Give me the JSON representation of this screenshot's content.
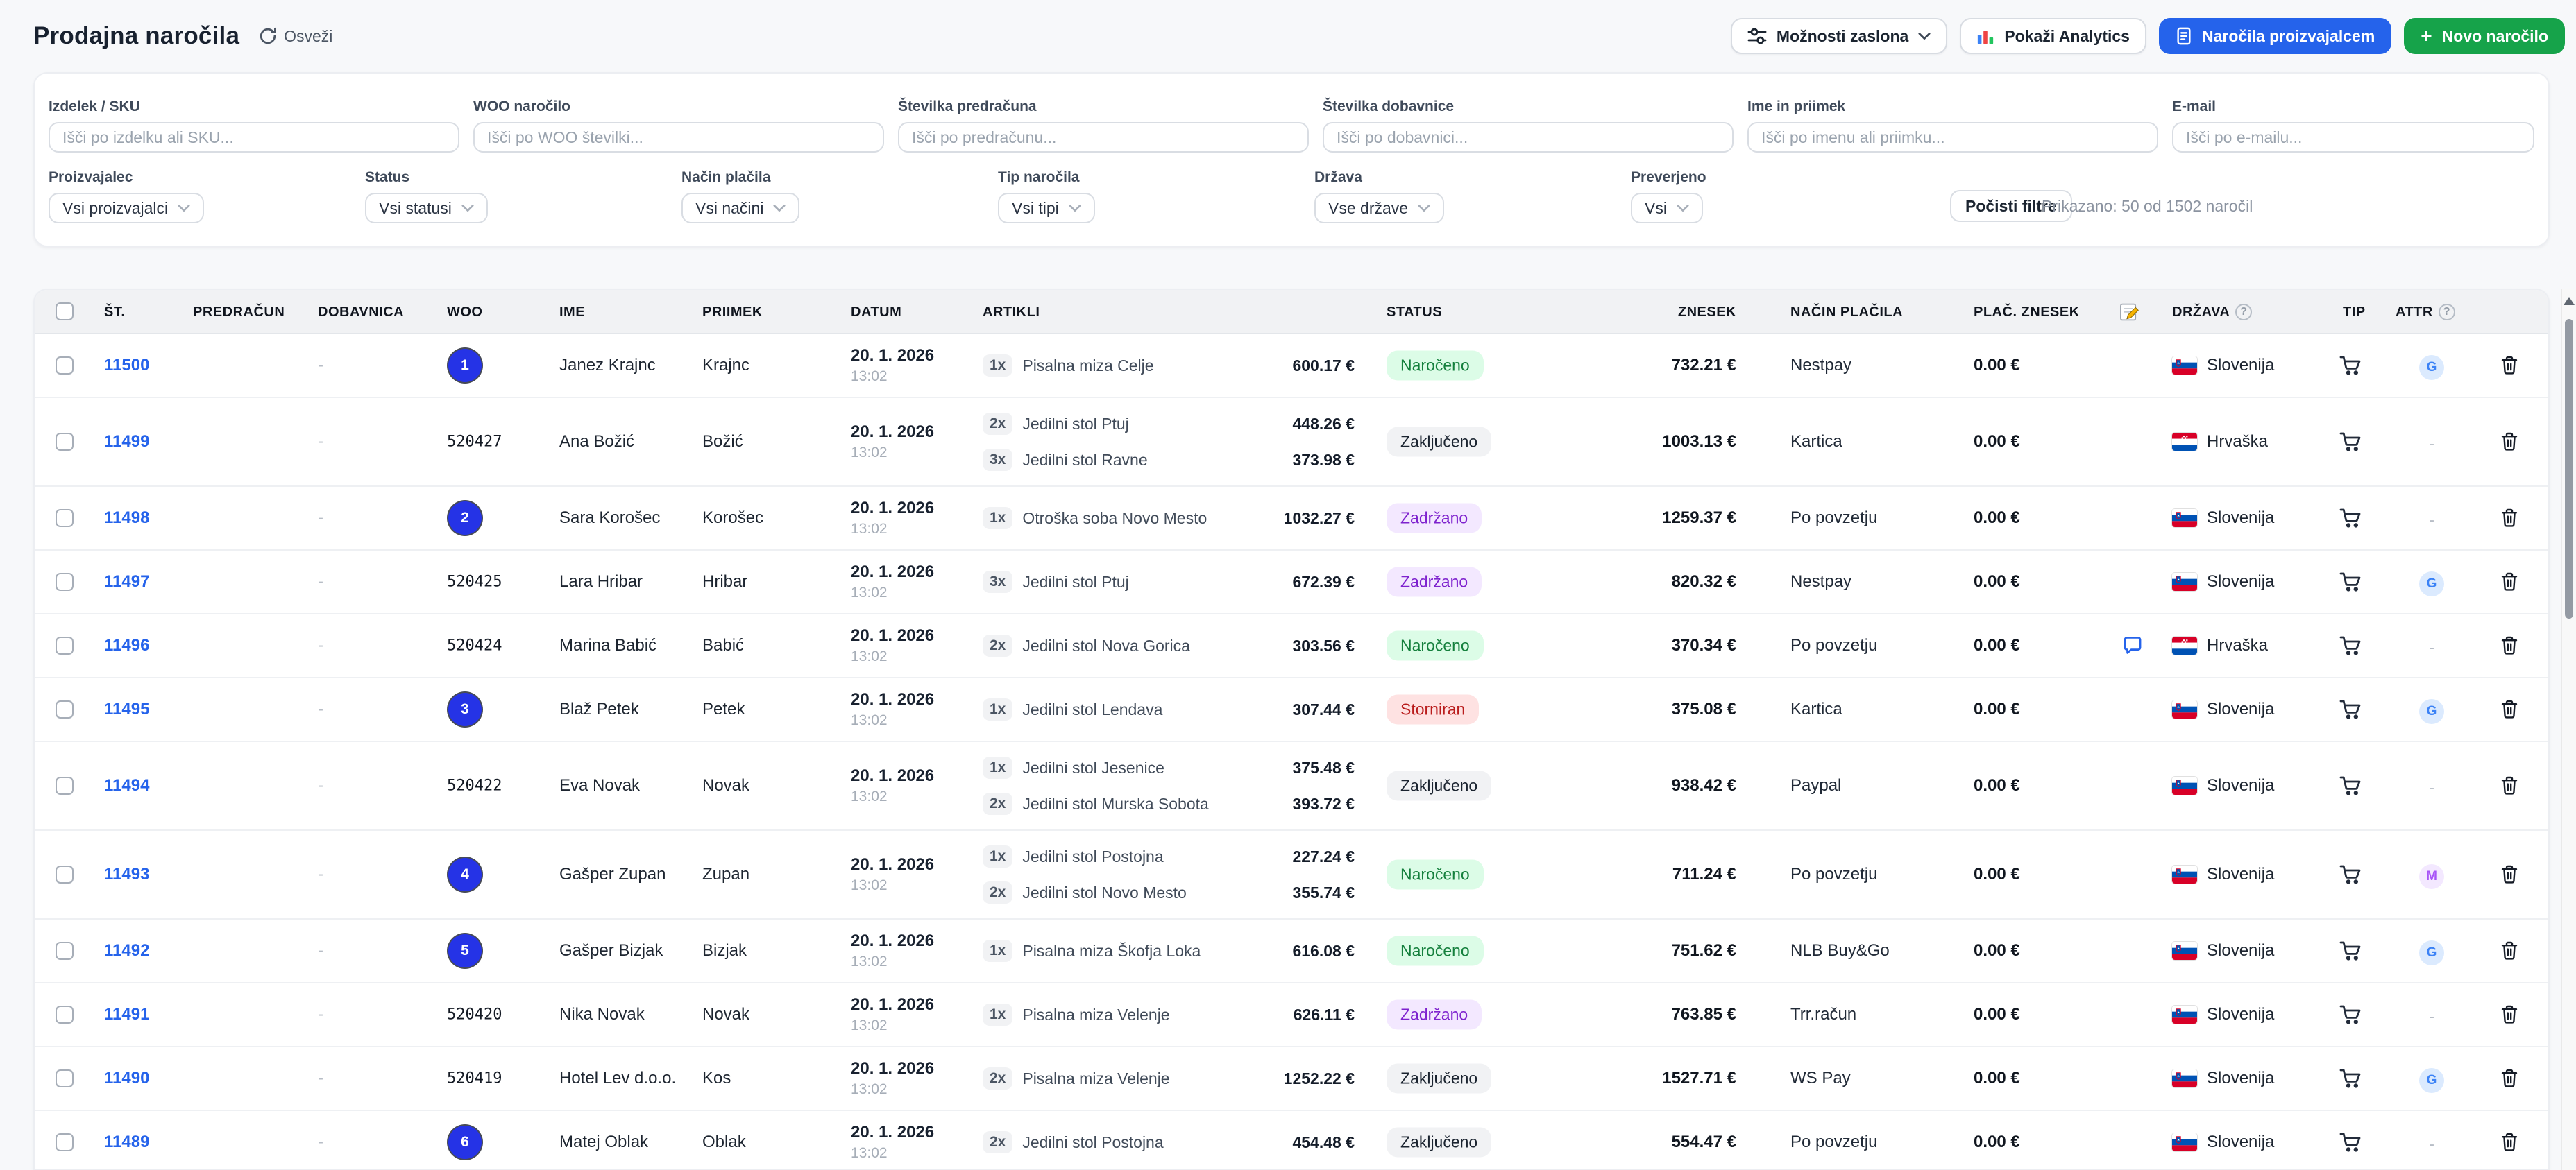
{
  "header": {
    "title": "Prodajna naročila",
    "refresh_label": "Osveži",
    "buttons": {
      "screen_options": "Možnosti zaslona",
      "show_analytics": "Pokaži Analytics",
      "manufacturer_orders": "Naročila proizvajalcem",
      "new_order": "Novo naročilo"
    }
  },
  "filters": {
    "fields": [
      {
        "label": "Izdelek / SKU",
        "placeholder": "Išči po izdelku ali SKU..."
      },
      {
        "label": "WOO naročilo",
        "placeholder": "Išči po WOO številki..."
      },
      {
        "label": "Številka predračuna",
        "placeholder": "Išči po predračunu..."
      },
      {
        "label": "Številka dobavnice",
        "placeholder": "Išči po dobavnici..."
      },
      {
        "label": "Ime in priimek",
        "placeholder": "Išči po imenu ali priimku..."
      },
      {
        "label": "E-mail",
        "placeholder": "Išči po e-mailu..."
      }
    ],
    "selects": [
      {
        "label": "Proizvajalec",
        "value": "Vsi proizvajalci"
      },
      {
        "label": "Status",
        "value": "Vsi statusi"
      },
      {
        "label": "Način plačila",
        "value": "Vsi načini"
      },
      {
        "label": "Tip naročila",
        "value": "Vsi tipi"
      },
      {
        "label": "Država",
        "value": "Vse države"
      },
      {
        "label": "Preverjeno",
        "value": "Vsi"
      }
    ],
    "clear_label": "Počisti filtre",
    "showing_text": "Prikazano: 50 od 1502 naročil"
  },
  "table": {
    "columns": [
      "ŠT.",
      "PREDRAČUN",
      "DOBAVNICA",
      "WOO",
      "IME",
      "PRIIMEK",
      "DATUM",
      "ARTIKLI",
      "STATUS",
      "ZNESEK",
      "NAČIN PLAČILA",
      "PLAČ. ZNESEK",
      "DRŽAVA",
      "TIP",
      "ATTR"
    ],
    "status_styles": {
      "Naročeno": {
        "bg": "#dcfce7",
        "fg": "#15803d"
      },
      "Zaključeno": {
        "bg": "#f1f2f4",
        "fg": "#1b2430"
      },
      "Zadržano": {
        "bg": "#f3e8ff",
        "fg": "#7e22ce"
      },
      "Storniran": {
        "bg": "#fee2e2",
        "fg": "#b91c1c"
      }
    },
    "attr_styles": {
      "G": {
        "bg": "#dbeafe",
        "fg": "#3b82f6"
      },
      "M": {
        "bg": "#f3e8ff",
        "fg": "#a855f7"
      }
    },
    "rows": [
      {
        "id": "11500",
        "dobavnica": "-",
        "woo_badge": "1",
        "woo": "",
        "ime": "Janez Krajnc",
        "priimek": "Krajnc",
        "date": "20. 1. 2026",
        "time": "13:02",
        "items": [
          {
            "qty": "1x",
            "name": "Pisalna miza Celje",
            "price": "600.17 €"
          }
        ],
        "status": "Naročeno",
        "znesek": "732.21 €",
        "payment": "Nestpay",
        "paid": "0.00 €",
        "note": false,
        "country": {
          "name": "Slovenija",
          "code": "si"
        },
        "attr": "G"
      },
      {
        "id": "11499",
        "dobavnica": "-",
        "woo_badge": "",
        "woo": "520427",
        "ime": "Ana Božić",
        "priimek": "Božić",
        "date": "20. 1. 2026",
        "time": "13:02",
        "items": [
          {
            "qty": "2x",
            "name": "Jedilni stol Ptuj",
            "price": "448.26 €"
          },
          {
            "qty": "3x",
            "name": "Jedilni stol Ravne",
            "price": "373.98 €"
          }
        ],
        "status": "Zaključeno",
        "znesek": "1003.13 €",
        "payment": "Kartica",
        "paid": "0.00 €",
        "note": false,
        "country": {
          "name": "Hrvaška",
          "code": "hr"
        },
        "attr": "-"
      },
      {
        "id": "11498",
        "dobavnica": "-",
        "woo_badge": "2",
        "woo": "",
        "ime": "Sara Korošec",
        "priimek": "Korošec",
        "date": "20. 1. 2026",
        "time": "13:02",
        "items": [
          {
            "qty": "1x",
            "name": "Otroška soba Novo Mesto",
            "price": "1032.27 €"
          }
        ],
        "status": "Zadržano",
        "znesek": "1259.37 €",
        "payment": "Po povzetju",
        "paid": "0.00 €",
        "note": false,
        "country": {
          "name": "Slovenija",
          "code": "si"
        },
        "attr": "-"
      },
      {
        "id": "11497",
        "dobavnica": "-",
        "woo_badge": "",
        "woo": "520425",
        "ime": "Lara Hribar",
        "priimek": "Hribar",
        "date": "20. 1. 2026",
        "time": "13:02",
        "items": [
          {
            "qty": "3x",
            "name": "Jedilni stol Ptuj",
            "price": "672.39 €"
          }
        ],
        "status": "Zadržano",
        "znesek": "820.32 €",
        "payment": "Nestpay",
        "paid": "0.00 €",
        "note": false,
        "country": {
          "name": "Slovenija",
          "code": "si"
        },
        "attr": "G"
      },
      {
        "id": "11496",
        "dobavnica": "-",
        "woo_badge": "",
        "woo": "520424",
        "ime": "Marina Babić",
        "priimek": "Babić",
        "date": "20. 1. 2026",
        "time": "13:02",
        "items": [
          {
            "qty": "2x",
            "name": "Jedilni stol Nova Gorica",
            "price": "303.56 €"
          }
        ],
        "status": "Naročeno",
        "znesek": "370.34 €",
        "payment": "Po povzetju",
        "paid": "0.00 €",
        "note": true,
        "country": {
          "name": "Hrvaška",
          "code": "hr"
        },
        "attr": "-"
      },
      {
        "id": "11495",
        "dobavnica": "-",
        "woo_badge": "3",
        "woo": "",
        "ime": "Blaž Petek",
        "priimek": "Petek",
        "date": "20. 1. 2026",
        "time": "13:02",
        "items": [
          {
            "qty": "1x",
            "name": "Jedilni stol Lendava",
            "price": "307.44 €"
          }
        ],
        "status": "Storniran",
        "znesek": "375.08 €",
        "payment": "Kartica",
        "paid": "0.00 €",
        "note": false,
        "country": {
          "name": "Slovenija",
          "code": "si"
        },
        "attr": "G"
      },
      {
        "id": "11494",
        "dobavnica": "-",
        "woo_badge": "",
        "woo": "520422",
        "ime": "Eva Novak",
        "priimek": "Novak",
        "date": "20. 1. 2026",
        "time": "13:02",
        "items": [
          {
            "qty": "1x",
            "name": "Jedilni stol Jesenice",
            "price": "375.48 €"
          },
          {
            "qty": "2x",
            "name": "Jedilni stol Murska Sobota",
            "price": "393.72 €"
          }
        ],
        "status": "Zaključeno",
        "znesek": "938.42 €",
        "payment": "Paypal",
        "paid": "0.00 €",
        "note": false,
        "country": {
          "name": "Slovenija",
          "code": "si"
        },
        "attr": "-"
      },
      {
        "id": "11493",
        "dobavnica": "-",
        "woo_badge": "4",
        "woo": "",
        "ime": "Gašper Zupan",
        "priimek": "Zupan",
        "date": "20. 1. 2026",
        "time": "13:02",
        "items": [
          {
            "qty": "1x",
            "name": "Jedilni stol Postojna",
            "price": "227.24 €"
          },
          {
            "qty": "2x",
            "name": "Jedilni stol Novo Mesto",
            "price": "355.74 €"
          }
        ],
        "status": "Naročeno",
        "znesek": "711.24 €",
        "payment": "Po povzetju",
        "paid": "0.00 €",
        "note": false,
        "country": {
          "name": "Slovenija",
          "code": "si"
        },
        "attr": "M"
      },
      {
        "id": "11492",
        "dobavnica": "-",
        "woo_badge": "5",
        "woo": "",
        "ime": "Gašper Bizjak",
        "priimek": "Bizjak",
        "date": "20. 1. 2026",
        "time": "13:02",
        "items": [
          {
            "qty": "1x",
            "name": "Pisalna miza Škofja Loka",
            "price": "616.08 €"
          }
        ],
        "status": "Naročeno",
        "znesek": "751.62 €",
        "payment": "NLB Buy&Go",
        "paid": "0.00 €",
        "note": false,
        "country": {
          "name": "Slovenija",
          "code": "si"
        },
        "attr": "G"
      },
      {
        "id": "11491",
        "dobavnica": "-",
        "woo_badge": "",
        "woo": "520420",
        "ime": "Nika Novak",
        "priimek": "Novak",
        "date": "20. 1. 2026",
        "time": "13:02",
        "items": [
          {
            "qty": "1x",
            "name": "Pisalna miza Velenje",
            "price": "626.11 €"
          }
        ],
        "status": "Zadržano",
        "znesek": "763.85 €",
        "payment": "Trr.račun",
        "paid": "0.00 €",
        "note": false,
        "country": {
          "name": "Slovenija",
          "code": "si"
        },
        "attr": "-"
      },
      {
        "id": "11490",
        "dobavnica": "-",
        "woo_badge": "",
        "woo": "520419",
        "ime": "Hotel Lev d.o.o.",
        "priimek": "Kos",
        "date": "20. 1. 2026",
        "time": "13:02",
        "items": [
          {
            "qty": "2x",
            "name": "Pisalna miza Velenje",
            "price": "1252.22 €"
          }
        ],
        "status": "Zaključeno",
        "znesek": "1527.71 €",
        "payment": "WS Pay",
        "paid": "0.00 €",
        "note": false,
        "country": {
          "name": "Slovenija",
          "code": "si"
        },
        "attr": "G"
      },
      {
        "id": "11489",
        "dobavnica": "-",
        "woo_badge": "6",
        "woo": "",
        "ime": "Matej Oblak",
        "priimek": "Oblak",
        "date": "20. 1. 2026",
        "time": "13:02",
        "items": [
          {
            "qty": "2x",
            "name": "Jedilni stol Postojna",
            "price": "454.48 €"
          }
        ],
        "status": "Zaključeno",
        "znesek": "554.47 €",
        "payment": "Po povzetju",
        "paid": "0.00 €",
        "note": false,
        "country": {
          "name": "Slovenija",
          "code": "si"
        },
        "attr": "-"
      }
    ]
  },
  "colors": {
    "accent_blue": "#2563eb",
    "accent_green": "#16a34a",
    "link_blue": "#2563eb",
    "woo_badge_blue": "#2533e6",
    "page_bg": "#f7f8fa",
    "table_header_bg": "#f1f2f4"
  }
}
